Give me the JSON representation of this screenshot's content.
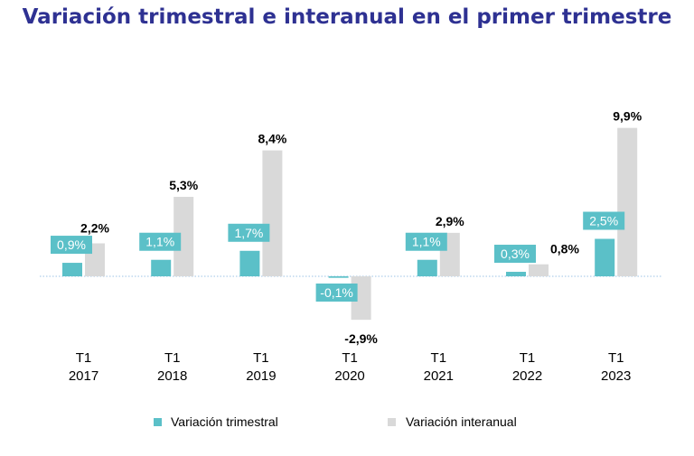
{
  "chart_data": {
    "type": "bar",
    "title": "Variación trimestral e interanual en el primer trimestre",
    "categories": [
      {
        "line1": "T1",
        "line2": "2017"
      },
      {
        "line1": "T1",
        "line2": "2018"
      },
      {
        "line1": "T1",
        "line2": "2019"
      },
      {
        "line1": "T1",
        "line2": "2020"
      },
      {
        "line1": "T1",
        "line2": "2021"
      },
      {
        "line1": "T1",
        "line2": "2022"
      },
      {
        "line1": "T1",
        "line2": "2023"
      }
    ],
    "series": [
      {
        "name": "Variación trimestral",
        "color": "#5bc0c8",
        "values": [
          0.9,
          1.1,
          1.7,
          -0.1,
          1.1,
          0.3,
          2.5
        ],
        "labels": [
          "0,9%",
          "1,1%",
          "1,7%",
          "-0,1%",
          "1,1%",
          "0,3%",
          "2,5%"
        ]
      },
      {
        "name": "Variación interanual",
        "color": "#d9d9d9",
        "values": [
          2.2,
          5.3,
          8.4,
          -2.9,
          2.9,
          0.8,
          9.9
        ],
        "labels": [
          "2,2%",
          "5,3%",
          "8,4%",
          "-2,9%",
          "2,9%",
          "0,8%",
          "9,9%"
        ]
      }
    ],
    "xlabel": "",
    "ylabel": "",
    "ylim": [
      -3,
      10
    ],
    "legend": "bottom"
  }
}
